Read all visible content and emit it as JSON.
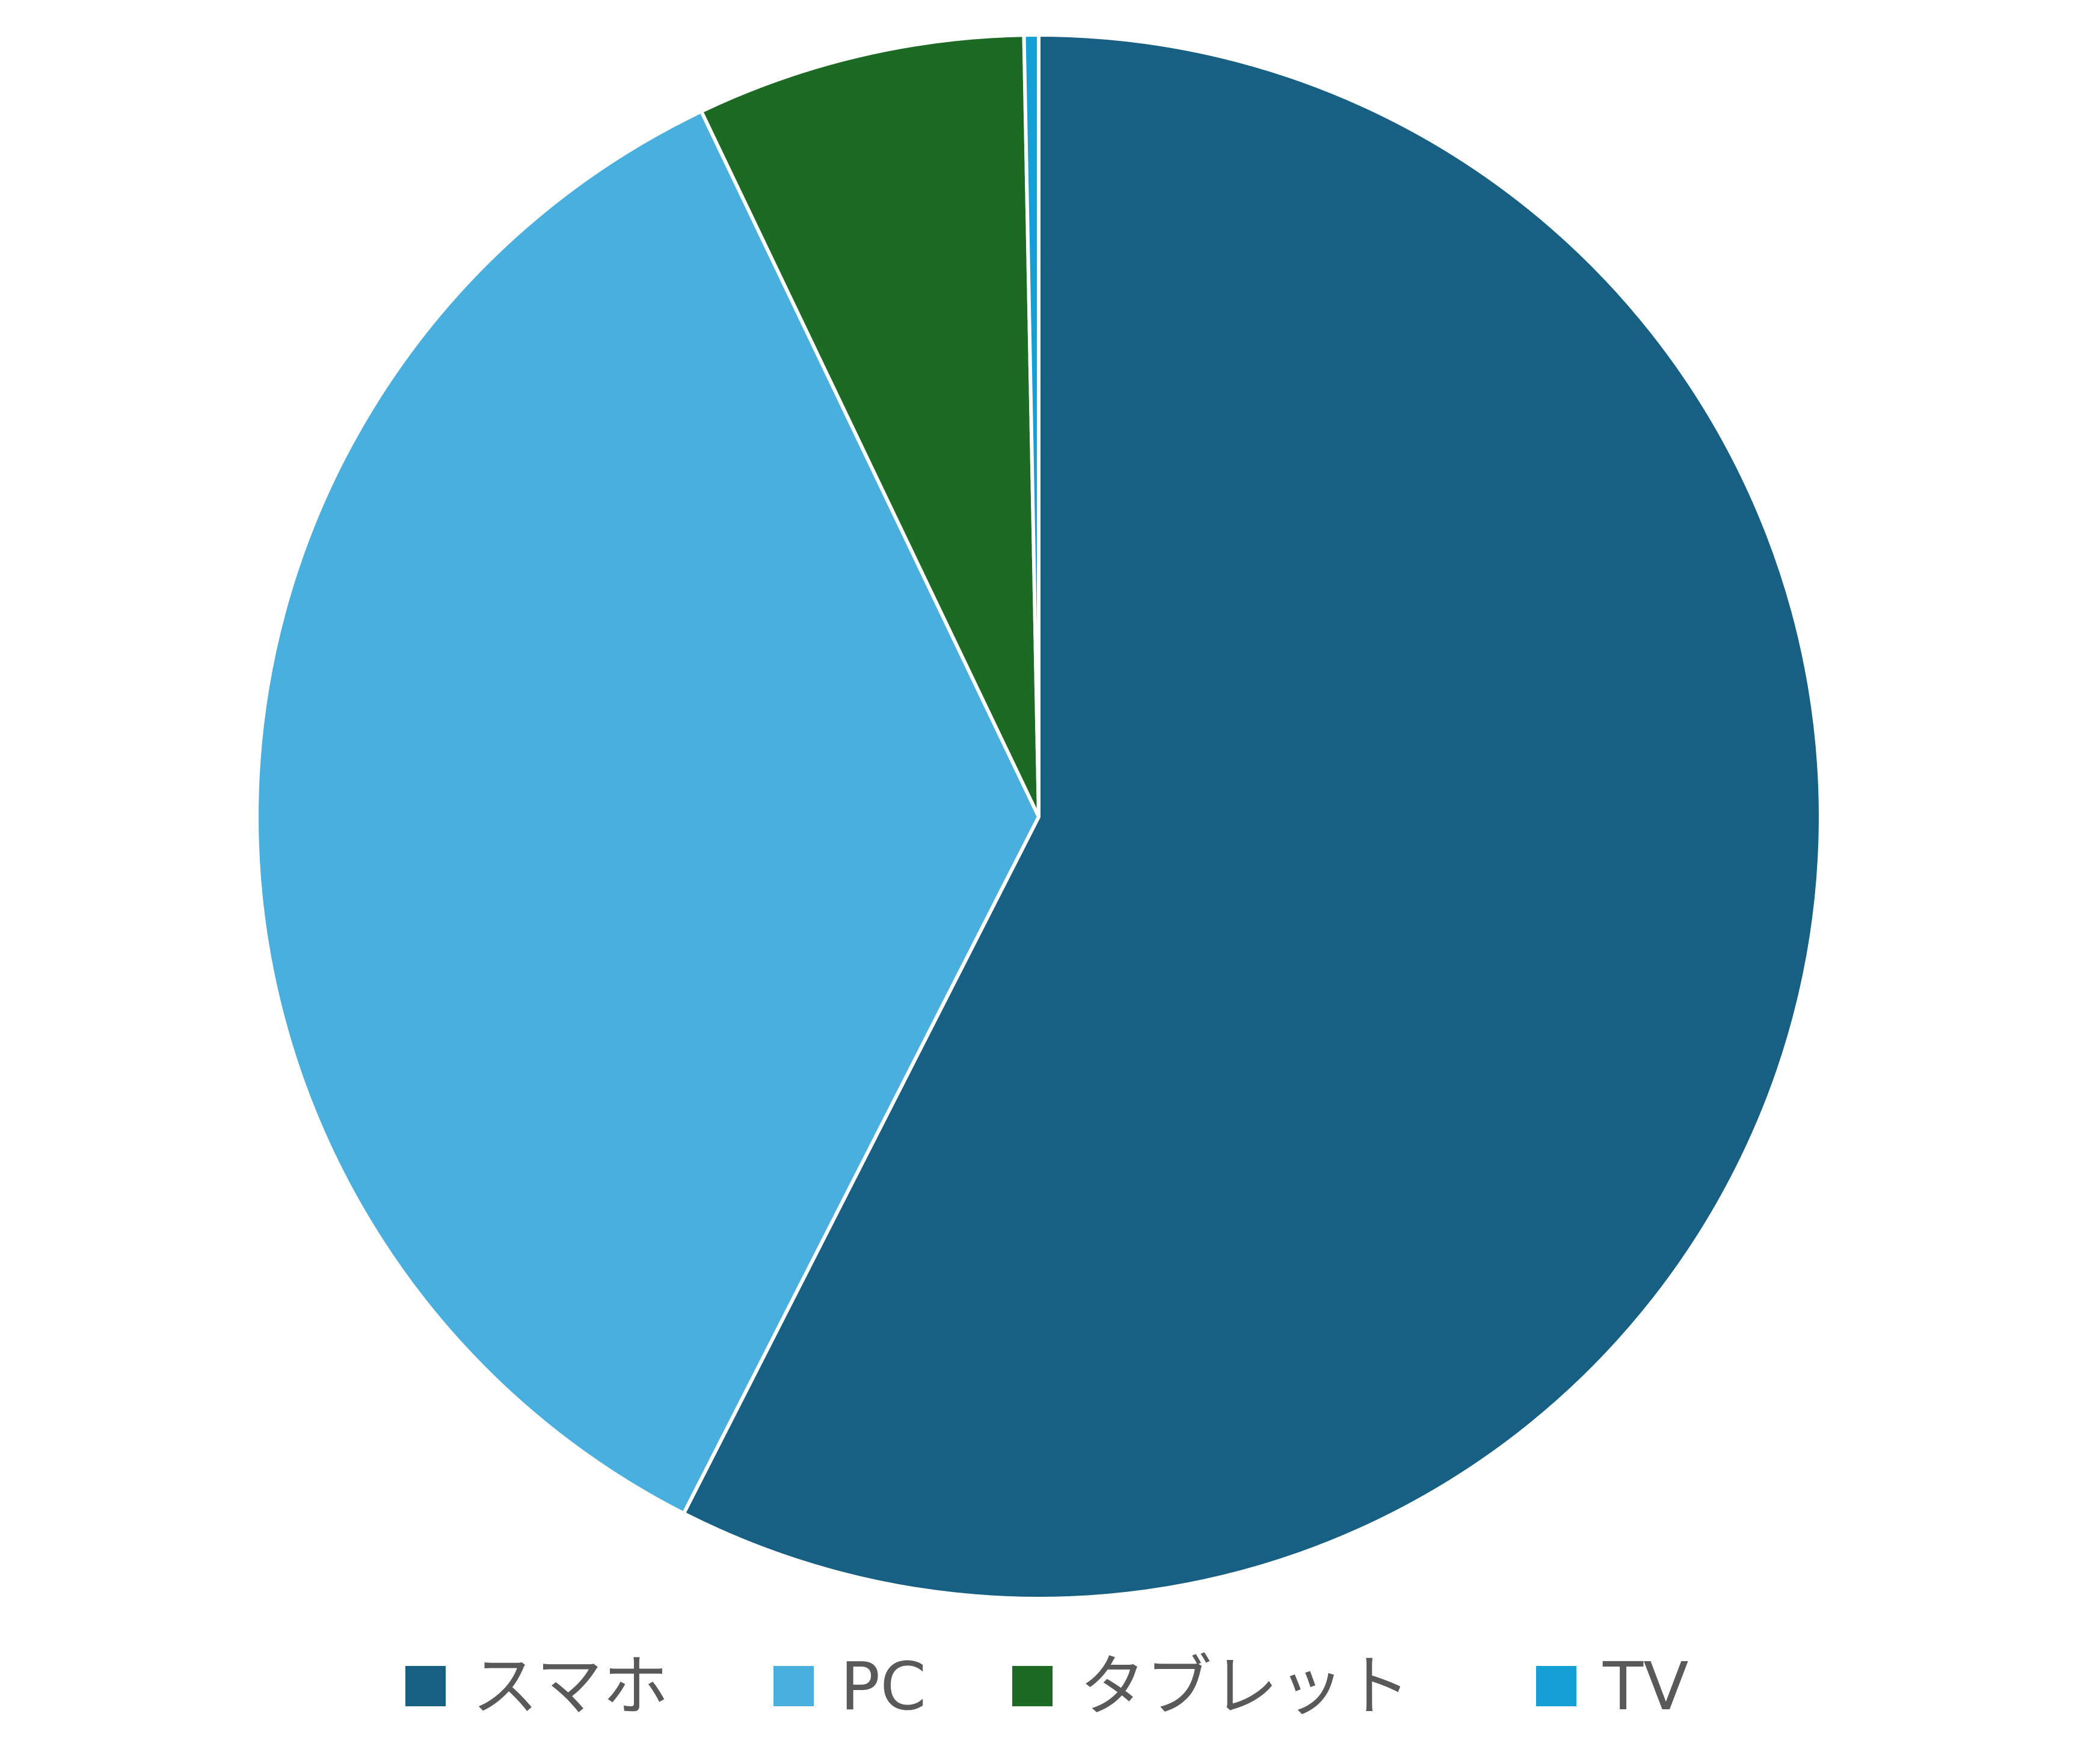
{
  "chart_data": {
    "type": "pie",
    "title": "",
    "categories": [
      "スマホ",
      "PC",
      "タブレット",
      "TV"
    ],
    "values": [
      57.5,
      35.4,
      6.8,
      0.3
    ],
    "colors": [
      "#176084",
      "#49AFDF",
      "#1D6A25",
      "#159FD7"
    ],
    "start_angle_deg": 0,
    "direction": "clockwise",
    "legend_position": "bottom",
    "slice_border_color": "#ffffff"
  }
}
